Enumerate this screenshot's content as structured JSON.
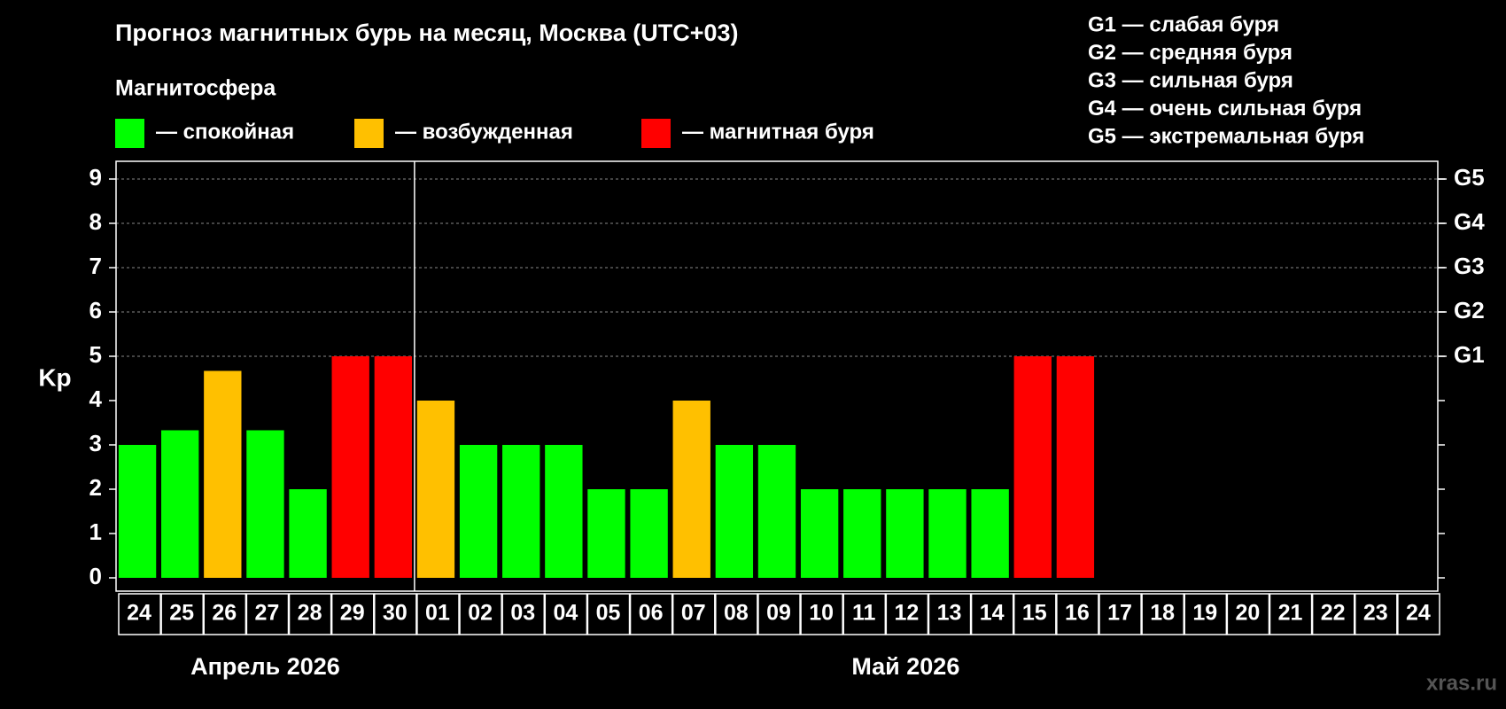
{
  "chart_data": {
    "type": "bar",
    "title": "Прогноз магнитных бурь на месяц, Москва (UTC+03)",
    "legend_title": "Магнитосфера",
    "storm_scale": [
      "G1 — слабая буря",
      "G2 — средняя буря",
      "G3 — сильная буря",
      "G4 — очень сильная буря",
      "G5 — экстремальная буря"
    ],
    "y_label": "Kp",
    "months": [
      "Апрель 2026",
      "Май 2026"
    ],
    "watermark": "xras.ru",
    "categories": [
      "24",
      "25",
      "26",
      "27",
      "28",
      "29",
      "30",
      "01",
      "02",
      "03",
      "04",
      "05",
      "06",
      "07",
      "08",
      "09",
      "10",
      "11",
      "12",
      "13",
      "14",
      "15",
      "16",
      "17",
      "18",
      "19",
      "20",
      "21",
      "22",
      "23",
      "24"
    ],
    "series": [
      {
        "name": "— спокойная",
        "color": "#00ff00",
        "values": [
          3,
          3.33,
          null,
          3.33,
          2,
          null,
          null,
          null,
          3,
          3,
          3,
          2,
          2,
          null,
          3,
          3,
          2,
          2,
          2,
          2,
          2,
          null,
          null,
          null,
          null,
          null,
          null,
          null,
          null,
          null,
          null
        ]
      },
      {
        "name": "— возбужденная",
        "color": "#ffc000",
        "values": [
          null,
          null,
          4.67,
          null,
          null,
          null,
          null,
          4,
          null,
          null,
          null,
          null,
          null,
          4,
          null,
          null,
          null,
          null,
          null,
          null,
          null,
          null,
          null,
          null,
          null,
          null,
          null,
          null,
          null,
          null,
          null
        ]
      },
      {
        "name": "— магнитная буря",
        "color": "#ff0000",
        "values": [
          null,
          null,
          null,
          null,
          null,
          5,
          5,
          null,
          null,
          null,
          null,
          null,
          null,
          null,
          null,
          null,
          null,
          null,
          null,
          null,
          null,
          5,
          5,
          null,
          null,
          null,
          null,
          null,
          null,
          null,
          null
        ]
      }
    ],
    "ylim": [
      -0.3,
      9.4
    ],
    "yticks": [
      0,
      1,
      2,
      3,
      4,
      5,
      6,
      7,
      8,
      9
    ],
    "y2lim": [
      -0.3,
      9.4
    ],
    "y2ticks": [
      {
        "value": 5,
        "label": "G1"
      },
      {
        "value": 6,
        "label": "G2"
      },
      {
        "value": 7,
        "label": "G3"
      },
      {
        "value": 8,
        "label": "G4"
      },
      {
        "value": 9,
        "label": "G5"
      }
    ],
    "grid": true
  }
}
